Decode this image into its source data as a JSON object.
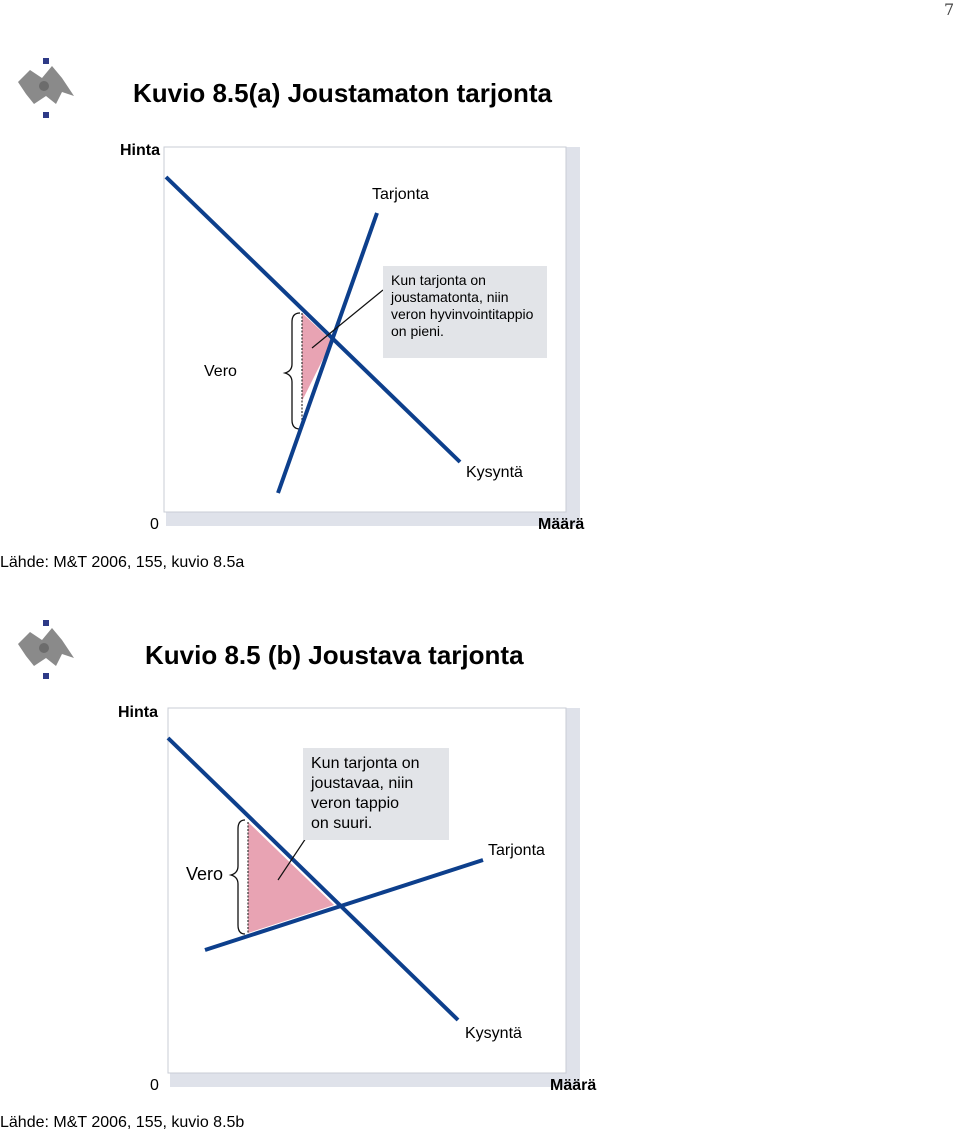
{
  "page_number": "7",
  "figures": [
    {
      "title": "Kuvio 8.5(a) Joustamaton tarjonta",
      "y_axis_label": "Hinta",
      "x_axis_label": "Määrä",
      "origin": "0",
      "supply_label": "Tarjonta",
      "demand_label": "Kysyntä",
      "tax_label": "Vero",
      "note_lines": [
        "Kun tarjonta on",
        "joustamatonta, niin",
        "veron hyvinvointitappio",
        "on pieni."
      ],
      "source": "Lähde: M&T 2006, 155, kuvio 8.5a"
    },
    {
      "title": "Kuvio 8.5 (b) Joustava tarjonta",
      "y_axis_label": "Hinta",
      "x_axis_label": "Määrä",
      "origin": "0",
      "supply_label": "Tarjonta",
      "demand_label": "Kysyntä",
      "tax_label": "Vero",
      "note_lines": [
        "Kun tarjonta on",
        "joustavaa, niin",
        "veron tappio",
        "on suuri."
      ],
      "source": "Lähde: M&T 2006, 155, kuvio 8.5b"
    }
  ],
  "colors": {
    "curve": "#0d3f8c",
    "deadweight_loss": "#e8a3b3",
    "note_background": "#e2e4e8",
    "logo": "#2e3a87"
  }
}
